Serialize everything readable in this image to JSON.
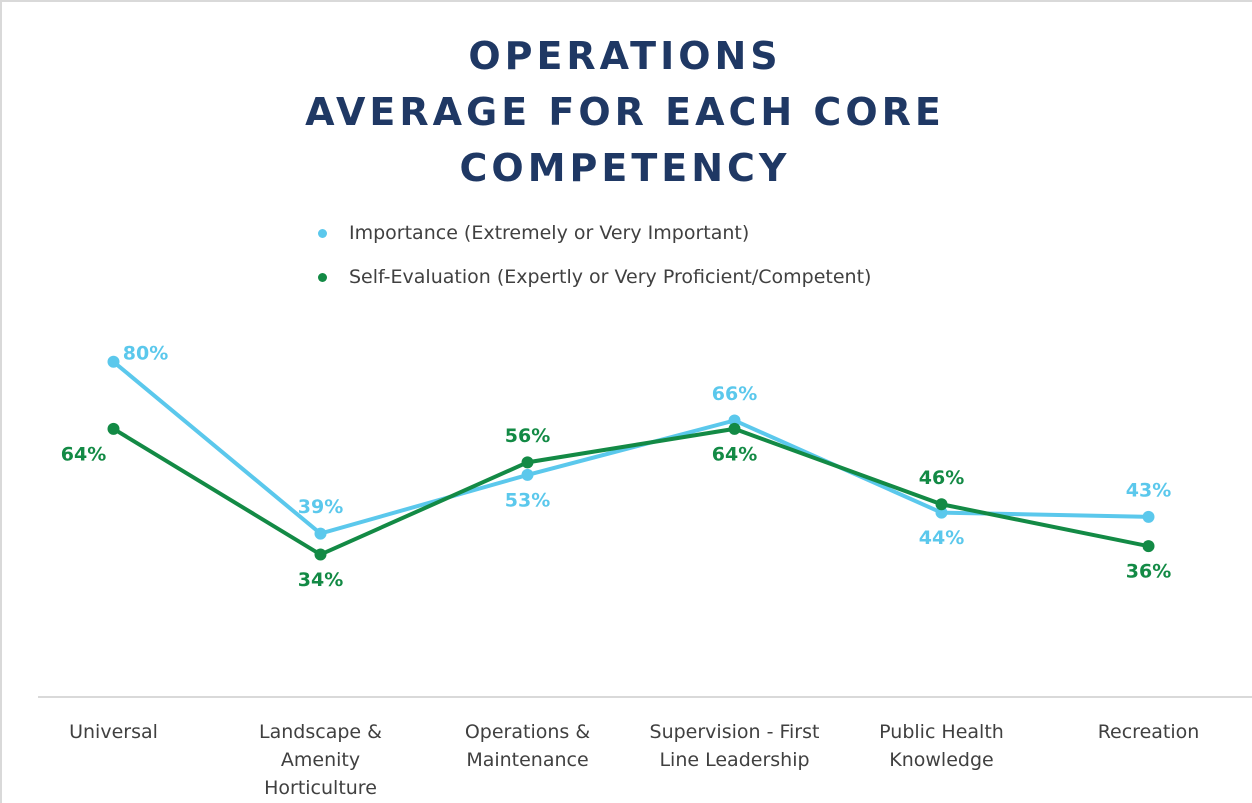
{
  "chart_data": {
    "type": "line",
    "title": "OPERATIONS\nAVERAGE FOR EACH CORE\nCOMPETENCY",
    "categories": [
      "Universal",
      "Landscape & Amenity Horticulture",
      "Operations & Maintenance",
      "Supervision - First Line Leadership",
      "Public Health Knowledge",
      "Recreation"
    ],
    "series": [
      {
        "name": "Importance (Extremely or Very Important)",
        "color": "#5bc8ec",
        "values": [
          80,
          39,
          53,
          66,
          44,
          43
        ],
        "value_labels": [
          "80%",
          "39%",
          "53%",
          "66%",
          "44%",
          "43%"
        ]
      },
      {
        "name": "Self-Evaluation (Expertly or Very Proficient/Competent)",
        "color": "#138a45",
        "values": [
          64,
          34,
          56,
          64,
          46,
          36
        ],
        "value_labels": [
          "64%",
          "34%",
          "56%",
          "64%",
          "46%",
          "36%"
        ]
      }
    ],
    "ylim": [
      0,
      90
    ],
    "legend": "top"
  }
}
